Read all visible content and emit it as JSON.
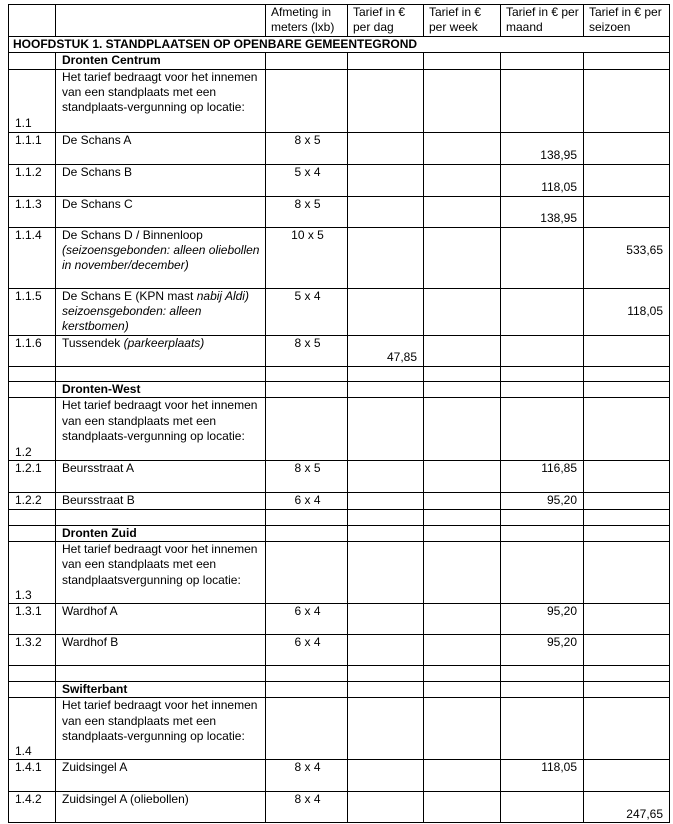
{
  "header": {
    "columns": [
      "",
      "",
      "Afmeting in meters (lxb)",
      "Tarief in € per dag",
      "Tarief in € per week",
      "Tarief in € per maand",
      "Tarief in € per seizoen"
    ]
  },
  "chapter_title": "HOOFDSTUK 1. STANDPLAATSEN OP OPENBARE GEMEENTEGROND",
  "rows": [
    {
      "type": "section",
      "label": "Dronten Centrum"
    },
    {
      "type": "intro",
      "code": "1.1",
      "desc": [
        {
          "t": "Het tarief bedraagt voor het innemen van een standplaats met een standplaats-vergunning op locatie:"
        }
      ]
    },
    {
      "type": "item",
      "code": "1.1.1",
      "desc": [
        {
          "t": "De Schans A"
        }
      ],
      "size": "8 x 5",
      "day": "",
      "week": "",
      "month": "138,95",
      "season": ""
    },
    {
      "type": "item",
      "code": "1.1.2",
      "desc": [
        {
          "t": "De Schans B"
        }
      ],
      "size": "5 x 4",
      "day": "",
      "week": "",
      "month": "118,05",
      "season": ""
    },
    {
      "type": "item",
      "code": "1.1.3",
      "desc": [
        {
          "t": "De Schans C"
        }
      ],
      "size": "8 x 5",
      "day": "",
      "week": "",
      "month": "138,95",
      "season": ""
    },
    {
      "type": "item",
      "code": "1.1.4",
      "desc": [
        {
          "t": "De Schans D / Binnenloop "
        },
        {
          "t": "(seizoensgebonden: alleen oliebollen in november/december)",
          "i": true
        }
      ],
      "size": "10 x 5",
      "day": "",
      "week": "",
      "month": "",
      "season": "533,65"
    },
    {
      "type": "item",
      "code": "1.1.5",
      "desc": [
        {
          "t": "De Schans E (KPN mast "
        },
        {
          "t": "nabij Aldi) seizoensgebonden: alleen kerstbomen)",
          "i": true
        }
      ],
      "size": "5 x 4",
      "day": "",
      "week": "",
      "month": "",
      "season": "118,05"
    },
    {
      "type": "item",
      "code": "1.1.6",
      "desc": [
        {
          "t": "Tussendek "
        },
        {
          "t": "(parkeerplaats)",
          "i": true
        }
      ],
      "size": "8 x 5",
      "day": "47,85",
      "week": "",
      "month": "",
      "season": ""
    },
    {
      "type": "empty"
    },
    {
      "type": "section",
      "label": "Dronten-West"
    },
    {
      "type": "intro",
      "code": "1.2",
      "desc": [
        {
          "t": "Het tarief bedraagt voor het innemen van een standplaats met een standplaats-vergunning op locatie:"
        }
      ]
    },
    {
      "type": "item",
      "code": "1.2.1",
      "desc": [
        {
          "t": "Beursstraat A"
        }
      ],
      "size": "8 x 5",
      "day": "",
      "week": "",
      "month": "116,85",
      "season": ""
    },
    {
      "type": "item",
      "code": "1.2.2",
      "desc": [
        {
          "t": "Beursstraat B"
        }
      ],
      "size": "6 x 4",
      "day": "",
      "week": "",
      "month": "95,20",
      "season": ""
    },
    {
      "type": "empty"
    },
    {
      "type": "section",
      "label": "Dronten Zuid"
    },
    {
      "type": "intro",
      "code": "1.3",
      "desc": [
        {
          "t": "Het tarief bedraagt voor het innemen van een standplaats met een standplaatsvergunning op locatie:"
        }
      ]
    },
    {
      "type": "item",
      "code": "1.3.1",
      "desc": [
        {
          "t": "Wardhof A"
        }
      ],
      "size": "6 x 4",
      "day": "",
      "week": "",
      "month": "95,20",
      "season": ""
    },
    {
      "type": "item",
      "code": "1.3.2",
      "desc": [
        {
          "t": "Wardhof B"
        }
      ],
      "size": "6 x 4",
      "day": "",
      "week": "",
      "month": "95,20",
      "season": ""
    },
    {
      "type": "empty"
    },
    {
      "type": "section",
      "label": "Swifterbant"
    },
    {
      "type": "intro",
      "code": "1.4",
      "desc": [
        {
          "t": "Het tarief bedraagt voor het innemen van een standplaats met een standplaats-vergunning op locatie:"
        }
      ]
    },
    {
      "type": "item",
      "code": "1.4.1",
      "desc": [
        {
          "t": "Zuidsingel A"
        }
      ],
      "size": "8 x 4",
      "day": "",
      "week": "",
      "month": "118,05",
      "season": ""
    },
    {
      "type": "item",
      "code": "1.4.2",
      "desc": [
        {
          "t": "Zuidsingel A (oliebollen)"
        }
      ],
      "size": "8 x 4",
      "day": "",
      "week": "",
      "month": "",
      "season": "247,65"
    }
  ]
}
